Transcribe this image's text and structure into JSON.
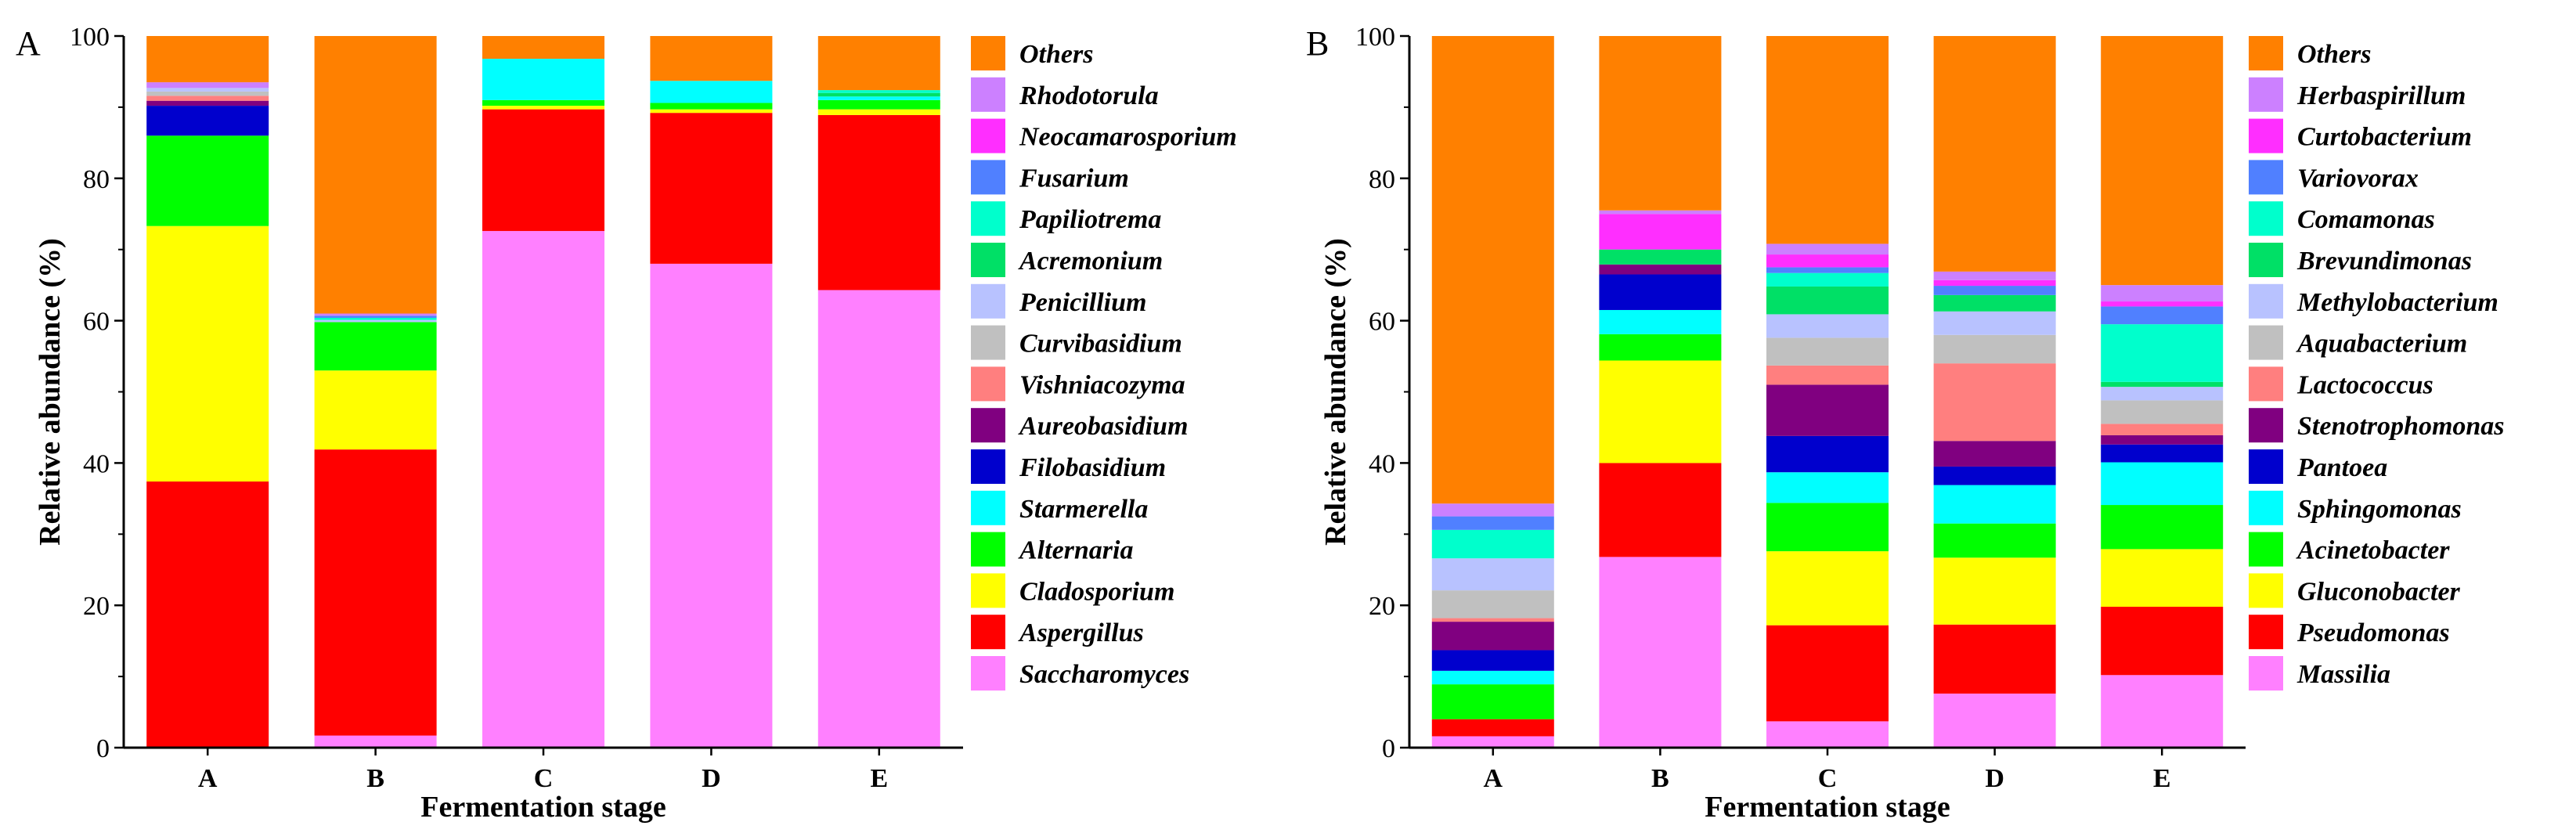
{
  "chart_data": [
    {
      "type": "bar",
      "stacked": true,
      "panel_label": "A",
      "xlabel": "Fermentation stage",
      "ylabel": "Relative abundance (%)",
      "ylim": [
        0,
        100
      ],
      "yticks": [
        0,
        20,
        40,
        60,
        80,
        100
      ],
      "categories": [
        "A",
        "B",
        "C",
        "D",
        "E"
      ],
      "legend_position": "right",
      "series": [
        {
          "name": "Saccharomyces",
          "color": "#FF80FF",
          "values": [
            0.0,
            1.7,
            72.6,
            68.0,
            64.3
          ]
        },
        {
          "name": "Aspergillus",
          "color": "#FF0000",
          "values": [
            37.4,
            40.2,
            17.1,
            21.2,
            24.6
          ]
        },
        {
          "name": "Cladosporium",
          "color": "#FFFF00",
          "values": [
            35.9,
            11.1,
            0.5,
            0.5,
            0.8
          ]
        },
        {
          "name": "Alternaria",
          "color": "#00FF00",
          "values": [
            12.7,
            6.8,
            0.8,
            0.9,
            1.3
          ]
        },
        {
          "name": "Starmerella",
          "color": "#00FFFF",
          "values": [
            0.0,
            0.0,
            5.8,
            3.1,
            0.5
          ]
        },
        {
          "name": "Filobasidium",
          "color": "#0000CD",
          "values": [
            4.2,
            0.0,
            0.0,
            0.0,
            0.0
          ]
        },
        {
          "name": "Aureobasidium",
          "color": "#800080",
          "values": [
            0.7,
            0.0,
            0.0,
            0.0,
            0.0
          ]
        },
        {
          "name": "Vishniacozyma",
          "color": "#FF7F7F",
          "values": [
            0.7,
            0.0,
            0.0,
            0.0,
            0.0
          ]
        },
        {
          "name": "Curvibasidium",
          "color": "#C0C0C0",
          "values": [
            0.6,
            0.0,
            0.0,
            0.0,
            0.0
          ]
        },
        {
          "name": "Penicillium",
          "color": "#B8C2FF",
          "values": [
            0.5,
            0.3,
            0.0,
            0.0,
            0.0
          ]
        },
        {
          "name": "Acremonium",
          "color": "#00E066",
          "values": [
            0.0,
            0.0,
            0.0,
            0.0,
            0.5
          ]
        },
        {
          "name": "Papiliotrema",
          "color": "#00FFCC",
          "values": [
            0.0,
            0.3,
            0.0,
            0.0,
            0.4
          ]
        },
        {
          "name": "Fusarium",
          "color": "#5080FF",
          "values": [
            0.0,
            0.3,
            0.0,
            0.0,
            0.0
          ]
        },
        {
          "name": "Neocamarosporium",
          "color": "#FF2EFF",
          "values": [
            0.0,
            0.0,
            0.0,
            0.0,
            0.0
          ]
        },
        {
          "name": "Rhodotorula",
          "color": "#CC80FF",
          "values": [
            0.8,
            0.3,
            0.0,
            0.0,
            0.0
          ]
        },
        {
          "name": "Others",
          "color": "#FF8000",
          "values": [
            6.5,
            39.0,
            3.2,
            6.3,
            7.6
          ]
        }
      ]
    },
    {
      "type": "bar",
      "stacked": true,
      "panel_label": "B",
      "xlabel": "Fermentation stage",
      "ylabel": "Relative abundance (%)",
      "ylim": [
        0,
        100
      ],
      "yticks": [
        0,
        20,
        40,
        60,
        80,
        100
      ],
      "categories": [
        "A",
        "B",
        "C",
        "D",
        "E"
      ],
      "legend_position": "right",
      "series": [
        {
          "name": "Massilia",
          "color": "#FF80FF",
          "values": [
            1.6,
            26.8,
            3.7,
            7.6,
            10.2
          ]
        },
        {
          "name": "Pseudomonas",
          "color": "#FF0000",
          "values": [
            2.4,
            13.2,
            13.5,
            9.7,
            9.6
          ]
        },
        {
          "name": "Gluconobacter",
          "color": "#FFFF00",
          "values": [
            0.0,
            14.4,
            10.4,
            9.4,
            8.1
          ]
        },
        {
          "name": "Acinetobacter",
          "color": "#00FF00",
          "values": [
            4.9,
            3.7,
            6.8,
            4.8,
            6.2
          ]
        },
        {
          "name": "Sphingomonas",
          "color": "#00FFFF",
          "values": [
            1.9,
            3.4,
            4.3,
            5.4,
            6.0
          ]
        },
        {
          "name": "Pantoea",
          "color": "#0000CD",
          "values": [
            2.9,
            5.0,
            5.1,
            2.6,
            2.5
          ]
        },
        {
          "name": "Stenotrophomonas",
          "color": "#800080",
          "values": [
            4.0,
            1.4,
            7.2,
            3.6,
            1.3
          ]
        },
        {
          "name": "Lactococcus",
          "color": "#FF7F7F",
          "values": [
            0.5,
            0.0,
            2.7,
            10.9,
            1.6
          ]
        },
        {
          "name": "Aquabacterium",
          "color": "#C0C0C0",
          "values": [
            3.9,
            0.0,
            3.9,
            4.0,
            3.3
          ]
        },
        {
          "name": "Methylobacterium",
          "color": "#B8C2FF",
          "values": [
            4.5,
            0.0,
            3.3,
            3.3,
            1.9
          ]
        },
        {
          "name": "Brevundimonas",
          "color": "#00E066",
          "values": [
            0.0,
            2.1,
            3.9,
            2.3,
            0.7
          ]
        },
        {
          "name": "Comamonas",
          "color": "#00FFCC",
          "values": [
            4.0,
            0.0,
            1.9,
            0.0,
            8.1
          ]
        },
        {
          "name": "Variovorax",
          "color": "#5080FF",
          "values": [
            1.9,
            0.0,
            0.8,
            1.3,
            2.5
          ]
        },
        {
          "name": "Curtobacterium",
          "color": "#FF2EFF",
          "values": [
            0.0,
            5.0,
            1.8,
            0.8,
            0.7
          ]
        },
        {
          "name": "Herbaspirillum",
          "color": "#CC80FF",
          "values": [
            1.8,
            0.5,
            1.5,
            1.2,
            2.3
          ]
        },
        {
          "name": "Others",
          "color": "#FF8000",
          "values": [
            65.7,
            24.5,
            29.2,
            33.1,
            35.0
          ]
        }
      ]
    }
  ]
}
